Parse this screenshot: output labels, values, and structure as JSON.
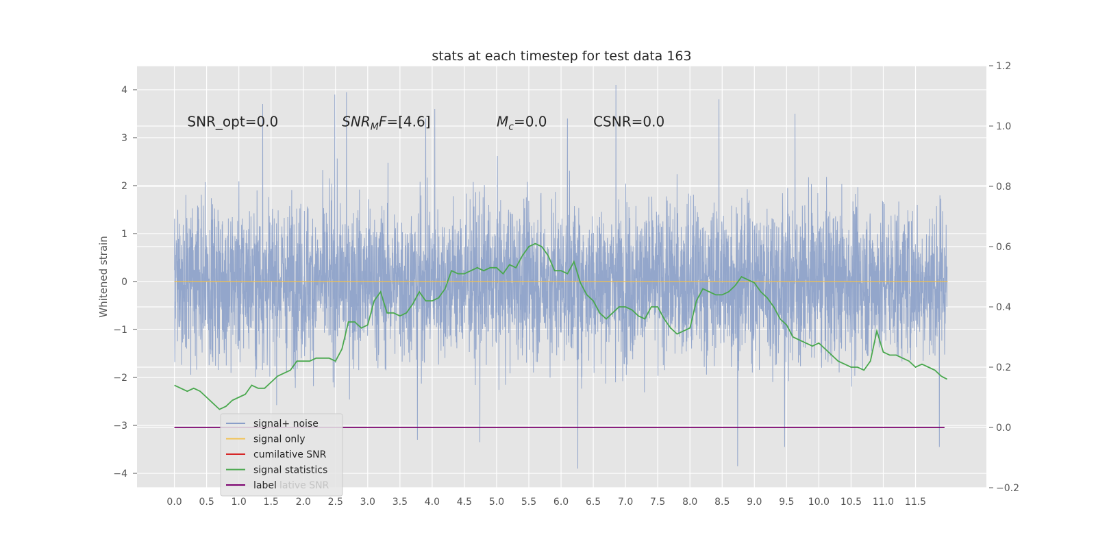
{
  "chart_data": {
    "type": "line",
    "title": "stats at each timestep for test data 163",
    "ylabel": "Whitened strain",
    "xlabel": "",
    "xlim": [
      -0.58,
      12.6
    ],
    "ylim": [
      -4.3,
      4.5
    ],
    "y2lim": [
      -0.2,
      1.2
    ],
    "grid": true,
    "legend_position": "lower-left",
    "x_ticks": [
      "0.0",
      "0.5",
      "1.0",
      "1.5",
      "2.0",
      "2.5",
      "3.0",
      "3.5",
      "4.0",
      "4.5",
      "5.0",
      "5.5",
      "6.0",
      "6.5",
      "7.0",
      "7.5",
      "8.0",
      "8.5",
      "9.0",
      "9.5",
      "10.0",
      "10.5",
      "11.0",
      "11.5"
    ],
    "y_ticks": [
      "4",
      "3",
      "2",
      "1",
      "0",
      "−1",
      "−2",
      "−3",
      "−4"
    ],
    "y2_ticks": [
      "1.2",
      "1.0",
      "0.8",
      "0.6",
      "0.4",
      "0.2",
      "0.0",
      "−0.2"
    ],
    "annotations": [
      {
        "text": "SNR_opt=0.0",
        "x": 0.2,
        "y": 3.35
      },
      {
        "text": "SNR_MF=[4.6]",
        "x": 2.6,
        "y": 3.35
      },
      {
        "text": "M_c=0.0",
        "x": 5.0,
        "y": 3.35
      },
      {
        "text": "CSNR=0.0",
        "x": 6.5,
        "y": 3.35
      }
    ],
    "legend": [
      {
        "label": "signal+ noise",
        "color": "#8a9ec8"
      },
      {
        "label": "signal only",
        "color": "#f2c14e"
      },
      {
        "label": "cumilative SNR",
        "color": "#d62728"
      },
      {
        "label": "signal statistics",
        "color": "#4aa84e"
      },
      {
        "label": "label",
        "color": "#7b006e"
      }
    ],
    "legend_overlap_text": "lative SNR",
    "series": [
      {
        "name": "signal+ noise",
        "axis": "left",
        "color": "#8a9ec8",
        "x_range": [
          0.0,
          11.99
        ],
        "approx_envelope": [
          -3.9,
          4.1
        ],
        "peaks": [
          {
            "x": 1.37,
            "y": 3.7
          },
          {
            "x": 2.49,
            "y": 3.9
          },
          {
            "x": 2.67,
            "y": 3.95
          },
          {
            "x": 3.9,
            "y": 3.4
          },
          {
            "x": 4.04,
            "y": 3.6
          },
          {
            "x": 6.85,
            "y": 4.1
          },
          {
            "x": 8.45,
            "y": 3.8
          },
          {
            "x": 9.63,
            "y": 3.5
          },
          {
            "x": 6.1,
            "y": 3.4
          },
          {
            "x": 6.26,
            "y": -3.9
          },
          {
            "x": 8.74,
            "y": -3.85
          },
          {
            "x": 9.47,
            "y": -3.45
          },
          {
            "x": 11.87,
            "y": -3.45
          },
          {
            "x": 4.74,
            "y": -3.35
          },
          {
            "x": 3.77,
            "y": -3.3
          }
        ]
      },
      {
        "name": "signal only",
        "axis": "left",
        "color": "#f2c14e",
        "x": [
          0.0,
          12.0
        ],
        "y": [
          0.0,
          0.0
        ]
      },
      {
        "name": "signal statistics",
        "axis": "right",
        "color": "#4aa84e",
        "x": [
          0.0,
          0.1,
          0.2,
          0.3,
          0.4,
          0.5,
          0.6,
          0.7,
          0.8,
          0.9,
          1.0,
          1.1,
          1.2,
          1.3,
          1.4,
          1.5,
          1.6,
          1.7,
          1.8,
          1.9,
          2.0,
          2.1,
          2.2,
          2.3,
          2.4,
          2.5,
          2.6,
          2.7,
          2.8,
          2.9,
          3.0,
          3.1,
          3.2,
          3.3,
          3.4,
          3.5,
          3.6,
          3.7,
          3.8,
          3.9,
          4.0,
          4.1,
          4.2,
          4.3,
          4.4,
          4.5,
          4.6,
          4.7,
          4.8,
          4.9,
          5.0,
          5.1,
          5.2,
          5.3,
          5.4,
          5.5,
          5.6,
          5.7,
          5.8,
          5.9,
          6.0,
          6.1,
          6.2,
          6.3,
          6.4,
          6.5,
          6.6,
          6.7,
          6.8,
          6.9,
          7.0,
          7.1,
          7.2,
          7.3,
          7.4,
          7.5,
          7.6,
          7.7,
          7.8,
          7.9,
          8.0,
          8.1,
          8.2,
          8.3,
          8.4,
          8.5,
          8.6,
          8.7,
          8.8,
          8.9,
          9.0,
          9.1,
          9.2,
          9.3,
          9.4,
          9.5,
          9.6,
          9.7,
          9.8,
          9.9,
          10.0,
          10.1,
          10.2,
          10.3,
          10.4,
          10.5,
          10.6,
          10.7,
          10.8,
          10.9,
          11.0,
          11.1,
          11.2,
          11.3,
          11.4,
          11.5,
          11.6,
          11.7,
          11.8,
          11.9,
          11.99
        ],
        "y": [
          0.14,
          0.13,
          0.12,
          0.13,
          0.12,
          0.1,
          0.08,
          0.06,
          0.07,
          0.09,
          0.1,
          0.11,
          0.14,
          0.13,
          0.13,
          0.15,
          0.17,
          0.18,
          0.19,
          0.22,
          0.22,
          0.22,
          0.23,
          0.23,
          0.23,
          0.22,
          0.26,
          0.35,
          0.35,
          0.33,
          0.34,
          0.42,
          0.45,
          0.38,
          0.38,
          0.37,
          0.38,
          0.41,
          0.45,
          0.42,
          0.42,
          0.43,
          0.46,
          0.52,
          0.51,
          0.51,
          0.52,
          0.53,
          0.52,
          0.53,
          0.53,
          0.51,
          0.54,
          0.53,
          0.57,
          0.6,
          0.61,
          0.6,
          0.57,
          0.52,
          0.52,
          0.51,
          0.55,
          0.48,
          0.44,
          0.42,
          0.38,
          0.36,
          0.38,
          0.4,
          0.4,
          0.39,
          0.37,
          0.36,
          0.4,
          0.4,
          0.36,
          0.33,
          0.31,
          0.32,
          0.33,
          0.42,
          0.46,
          0.45,
          0.44,
          0.44,
          0.45,
          0.47,
          0.5,
          0.49,
          0.48,
          0.45,
          0.43,
          0.4,
          0.36,
          0.34,
          0.3,
          0.29,
          0.28,
          0.27,
          0.28,
          0.26,
          0.24,
          0.22,
          0.21,
          0.2,
          0.2,
          0.19,
          0.22,
          0.32,
          0.25,
          0.24,
          0.24,
          0.23,
          0.22,
          0.2,
          0.21,
          0.2,
          0.19,
          0.17,
          0.16
        ]
      },
      {
        "name": "label",
        "axis": "right",
        "color": "#7b006e",
        "x": [
          0.0,
          11.95
        ],
        "y": [
          0.0,
          0.0
        ]
      }
    ]
  }
}
